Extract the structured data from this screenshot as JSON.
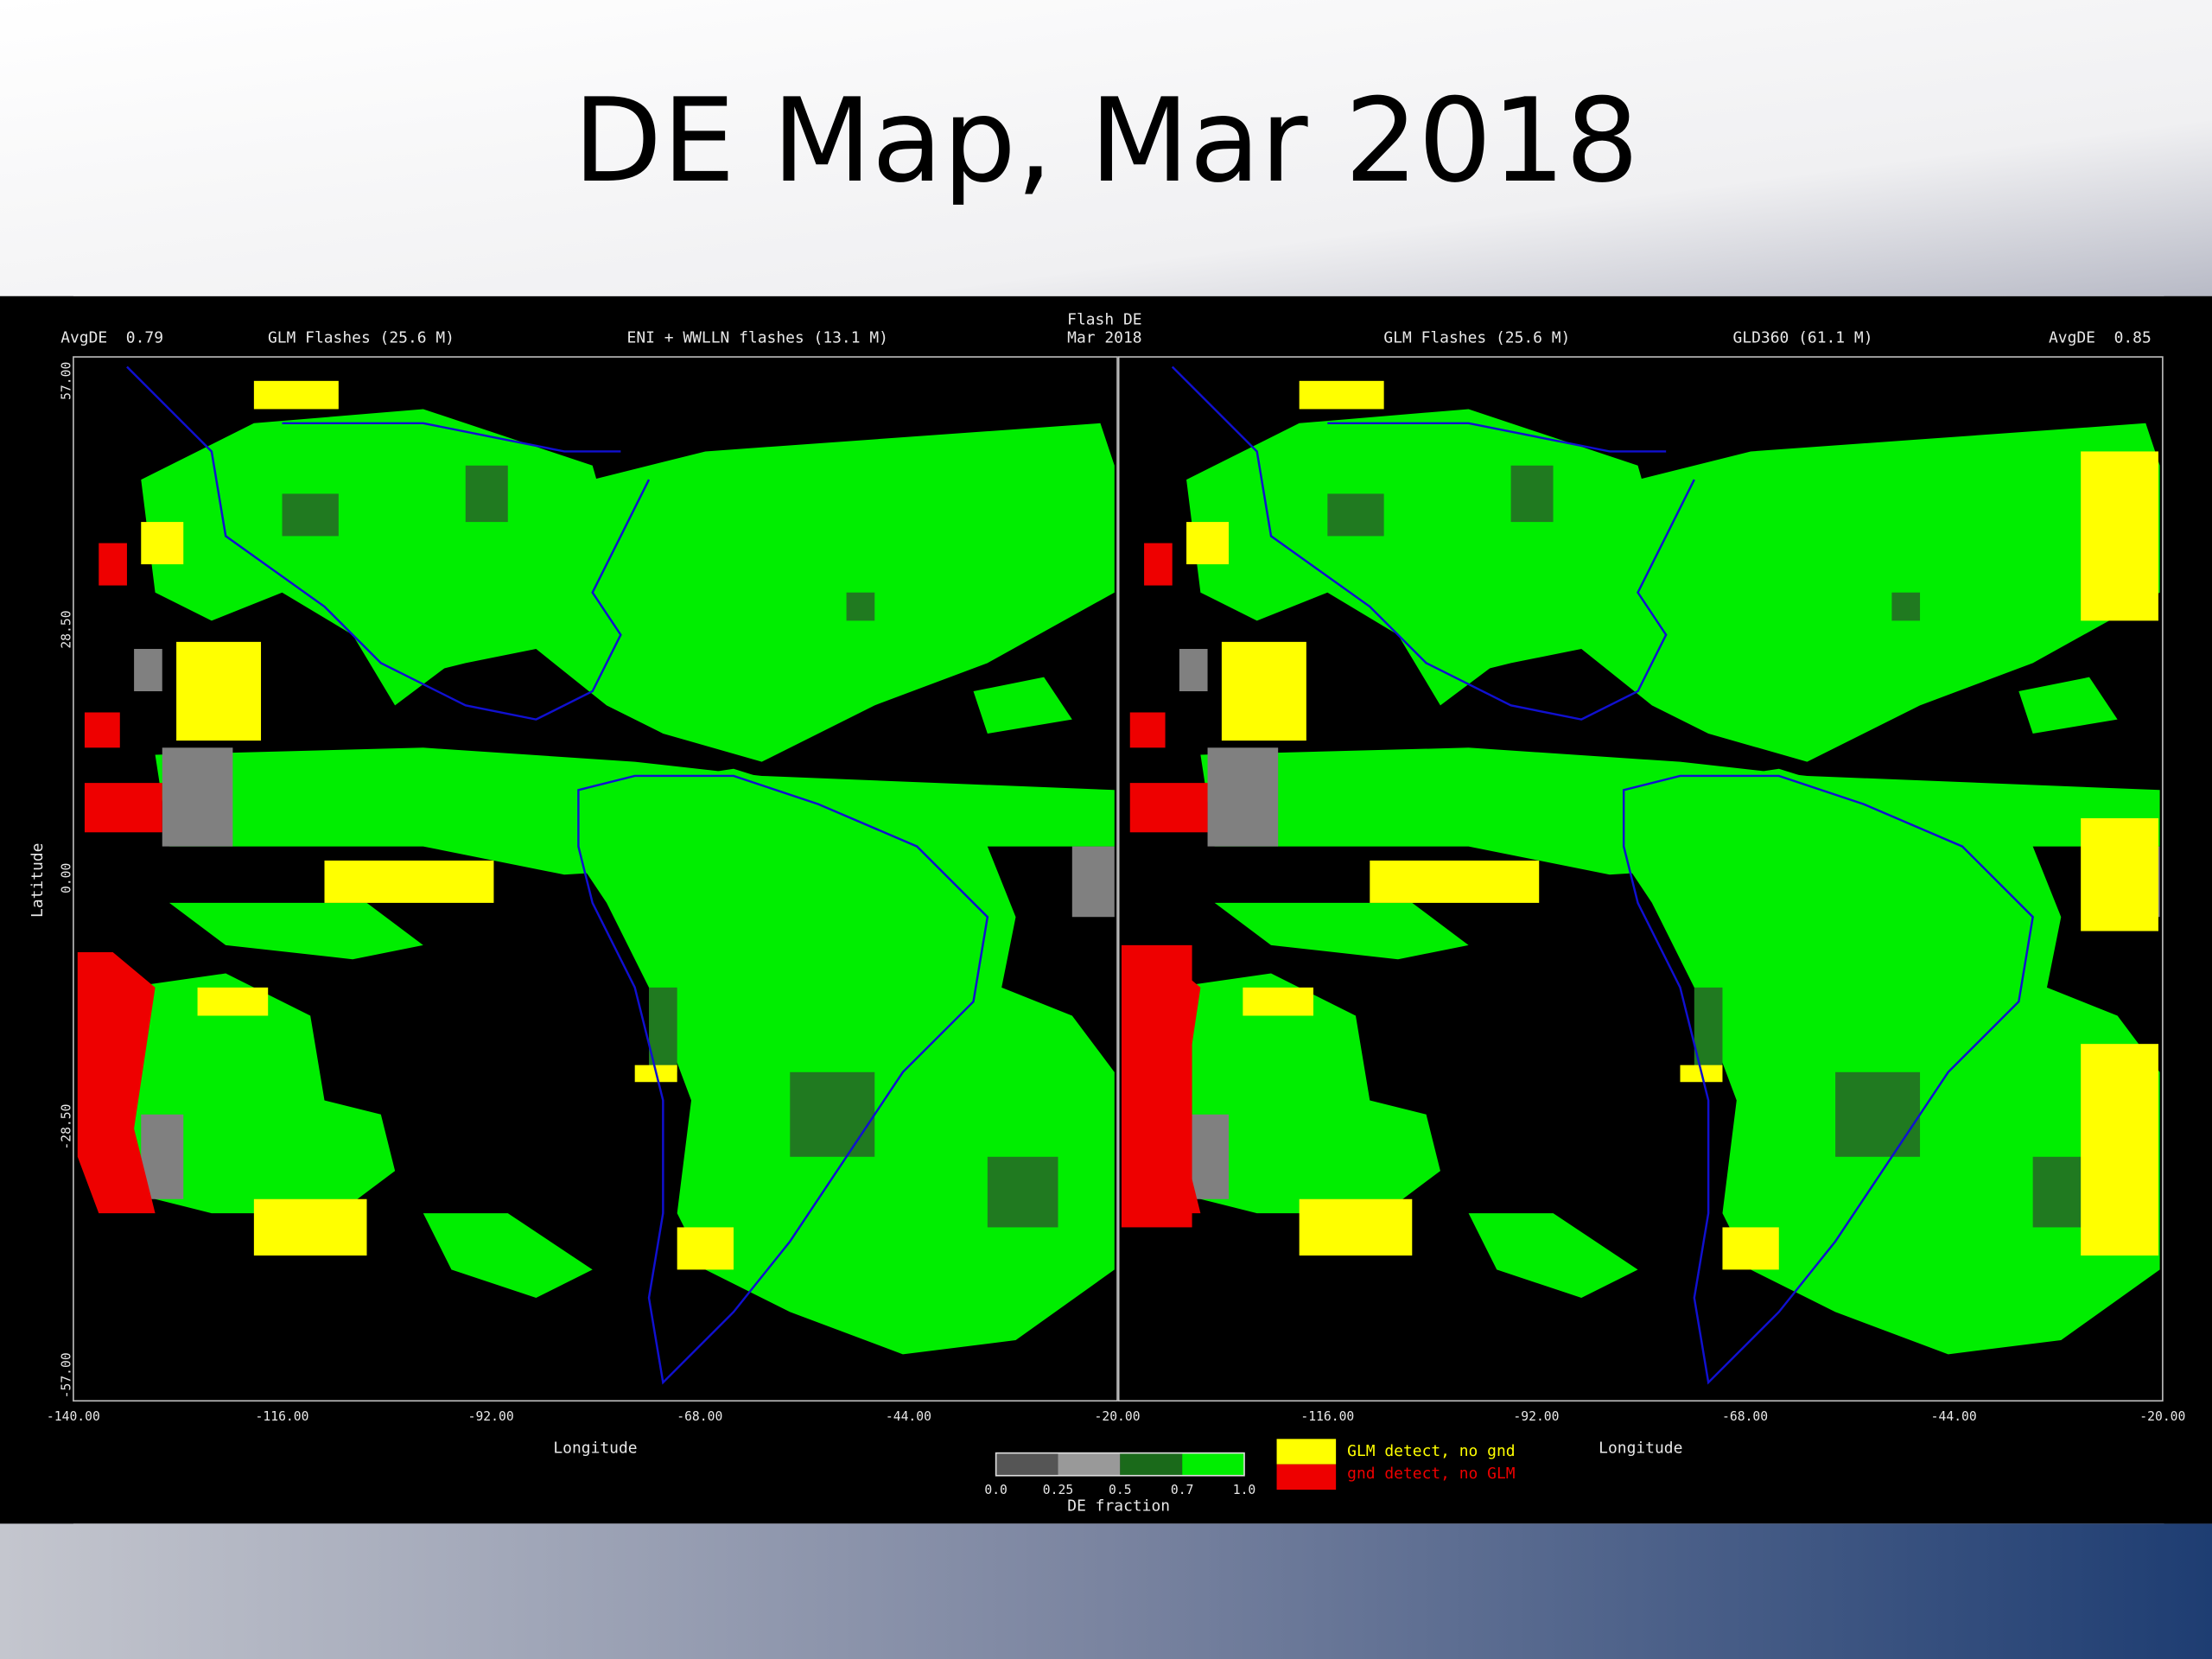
{
  "header": {
    "title": "DE Map, Mar 2018"
  },
  "figure": {
    "center_title": [
      "Flash DE",
      "Mar 2018"
    ],
    "left_panel": {
      "avg_de": "AvgDE  0.79",
      "glm": "GLM Flashes (25.6 M)",
      "ground": "ENI + WWLLN flashes (13.1 M)"
    },
    "right_panel": {
      "glm": "GLM Flashes (25.6 M)",
      "ground": "GLD360 (61.1 M)",
      "avg_de": "AvgDE  0.85"
    },
    "y_axis": {
      "label": "Latitude",
      "ticks": [
        "57.00",
        "28.50",
        "0.00",
        "-28.50",
        "-57.00"
      ]
    },
    "left_x_axis": {
      "label": "Longitude",
      "ticks": [
        "-140.00",
        "-116.00",
        "-92.00",
        "-68.00",
        "-44.00",
        "-20.00"
      ]
    },
    "right_x_axis": {
      "label": "Longitude",
      "ticks": [
        "-116.00",
        "-92.00",
        "-68.00",
        "-44.00",
        "-20.00"
      ]
    },
    "colorbar": {
      "ticks": [
        "0.0",
        "0.25",
        "0.5",
        "0.7",
        "1.0"
      ],
      "label": "DE fraction"
    },
    "legend": [
      "GLM detect, no gnd",
      "gnd detect, no GLM"
    ]
  }
}
